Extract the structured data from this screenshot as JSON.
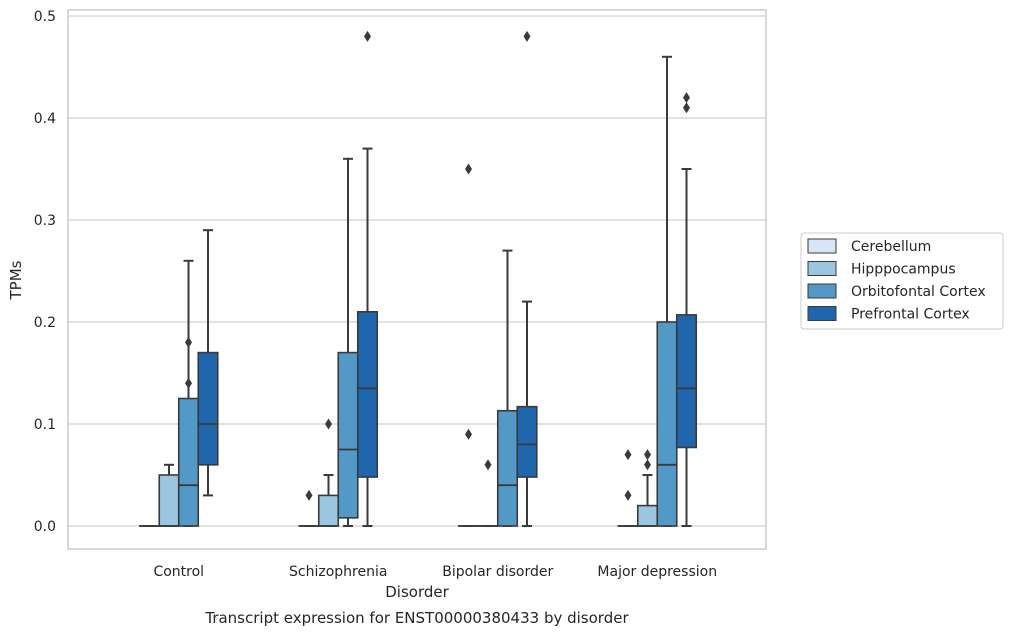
{
  "caption": "Transcript expression for ENST00000380433 by disorder",
  "chart_data": {
    "type": "boxplot",
    "xlabel": "Disorder",
    "ylabel": "TPMs",
    "ylim": [
      -0.023,
      0.505
    ],
    "yticks": [
      "0.0",
      "0.1",
      "0.2",
      "0.3",
      "0.4",
      "0.5"
    ],
    "grid": "horizontal",
    "legend_position": "right",
    "categories": [
      "Control",
      "Schizophrenia",
      "Bipolar disorder",
      "Major depression"
    ],
    "series": [
      {
        "name": "Cerebellum",
        "color": "#d6e6f4",
        "boxes": [
          {
            "whisker_low": 0,
            "q1": 0,
            "median": 0,
            "q3": 0,
            "whisker_high": 0,
            "outliers": []
          },
          {
            "whisker_low": 0,
            "q1": 0,
            "median": 0,
            "q3": 0,
            "whisker_high": 0,
            "outliers": [
              0.03
            ]
          },
          {
            "whisker_low": 0,
            "q1": 0,
            "median": 0,
            "q3": 0,
            "whisker_high": 0,
            "outliers": [
              0.09,
              0.35
            ]
          },
          {
            "whisker_low": 0,
            "q1": 0,
            "median": 0,
            "q3": 0,
            "whisker_high": 0,
            "outliers": [
              0.03,
              0.07
            ]
          }
        ]
      },
      {
        "name": "Hipppocampus",
        "color": "#9cc5df",
        "boxes": [
          {
            "whisker_low": 0,
            "q1": 0,
            "median": 0,
            "q3": 0.05,
            "whisker_high": 0.06,
            "outliers": []
          },
          {
            "whisker_low": 0,
            "q1": 0,
            "median": 0,
            "q3": 0.03,
            "whisker_high": 0.05,
            "outliers": [
              0.1
            ]
          },
          {
            "whisker_low": 0,
            "q1": 0,
            "median": 0,
            "q3": 0,
            "whisker_high": 0,
            "outliers": [
              0.06
            ]
          },
          {
            "whisker_low": 0,
            "q1": 0,
            "median": 0,
            "q3": 0.02,
            "whisker_high": 0.05,
            "outliers": [
              0.06,
              0.07
            ]
          }
        ]
      },
      {
        "name": "Orbitofontal Cortex",
        "color": "#5299c8",
        "boxes": [
          {
            "whisker_low": 0,
            "q1": 0,
            "median": 0.04,
            "q3": 0.125,
            "whisker_high": 0.26,
            "outliers": [
              0.14,
              0.18
            ]
          },
          {
            "whisker_low": 0,
            "q1": 0.008,
            "median": 0.075,
            "q3": 0.17,
            "whisker_high": 0.36,
            "outliers": []
          },
          {
            "whisker_low": 0,
            "q1": 0,
            "median": 0.04,
            "q3": 0.113,
            "whisker_high": 0.27,
            "outliers": []
          },
          {
            "whisker_low": 0,
            "q1": 0,
            "median": 0.06,
            "q3": 0.2,
            "whisker_high": 0.46,
            "outliers": []
          }
        ]
      },
      {
        "name": "Prefrontal Cortex",
        "color": "#2066ac",
        "boxes": [
          {
            "whisker_low": 0.03,
            "q1": 0.06,
            "median": 0.1,
            "q3": 0.17,
            "whisker_high": 0.29,
            "outliers": []
          },
          {
            "whisker_low": 0,
            "q1": 0.048,
            "median": 0.135,
            "q3": 0.21,
            "whisker_high": 0.37,
            "outliers": [
              0.48
            ]
          },
          {
            "whisker_low": 0,
            "q1": 0.048,
            "median": 0.08,
            "q3": 0.117,
            "whisker_high": 0.22,
            "outliers": [
              0.48
            ]
          },
          {
            "whisker_low": 0,
            "q1": 0.077,
            "median": 0.135,
            "q3": 0.207,
            "whisker_high": 0.35,
            "outliers": [
              0.41,
              0.42
            ]
          }
        ]
      }
    ]
  }
}
